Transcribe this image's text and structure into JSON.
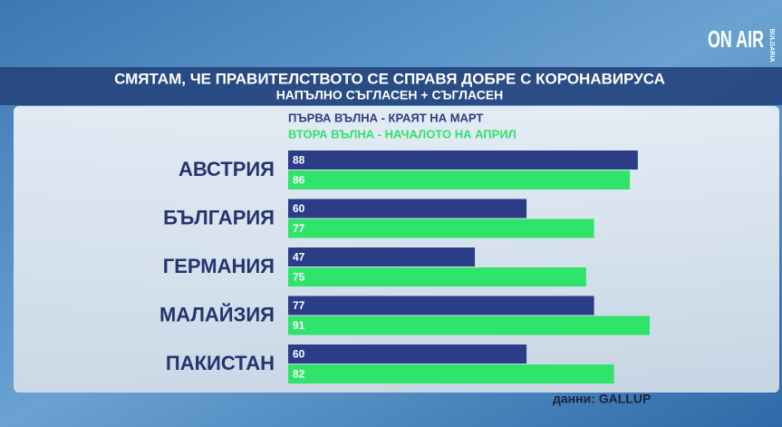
{
  "chart_data": {
    "type": "bar",
    "title": "СМЯТАМ, ЧЕ ПРАВИТЕЛСТВОТО СЕ СПРАВЯ ДОБРЕ С КОРОНАВИРУСА",
    "subtitle": "НАПЪЛНО СЪГЛАСЕН + СЪГЛАСЕН",
    "categories": [
      "АВСТРИЯ",
      "БЪЛГАРИЯ",
      "ГЕРМАНИЯ",
      "МАЛАЙЗИЯ",
      "ПАКИСТАН"
    ],
    "series": [
      {
        "name": "ПЪРВА ВЪЛНА - КРАЯТ НА МАРТ",
        "color": "#2b3d87",
        "values": [
          88,
          60,
          47,
          77,
          60
        ]
      },
      {
        "name": "ВТОРА ВЪЛНА - НАЧАЛОТО НА АПРИЛ",
        "color": "#2fe36b",
        "values": [
          86,
          77,
          75,
          91,
          82
        ]
      }
    ],
    "source": "данни: GALLUP"
  },
  "logo": {
    "text": "ON AIR",
    "sub": "BULGARIA"
  }
}
